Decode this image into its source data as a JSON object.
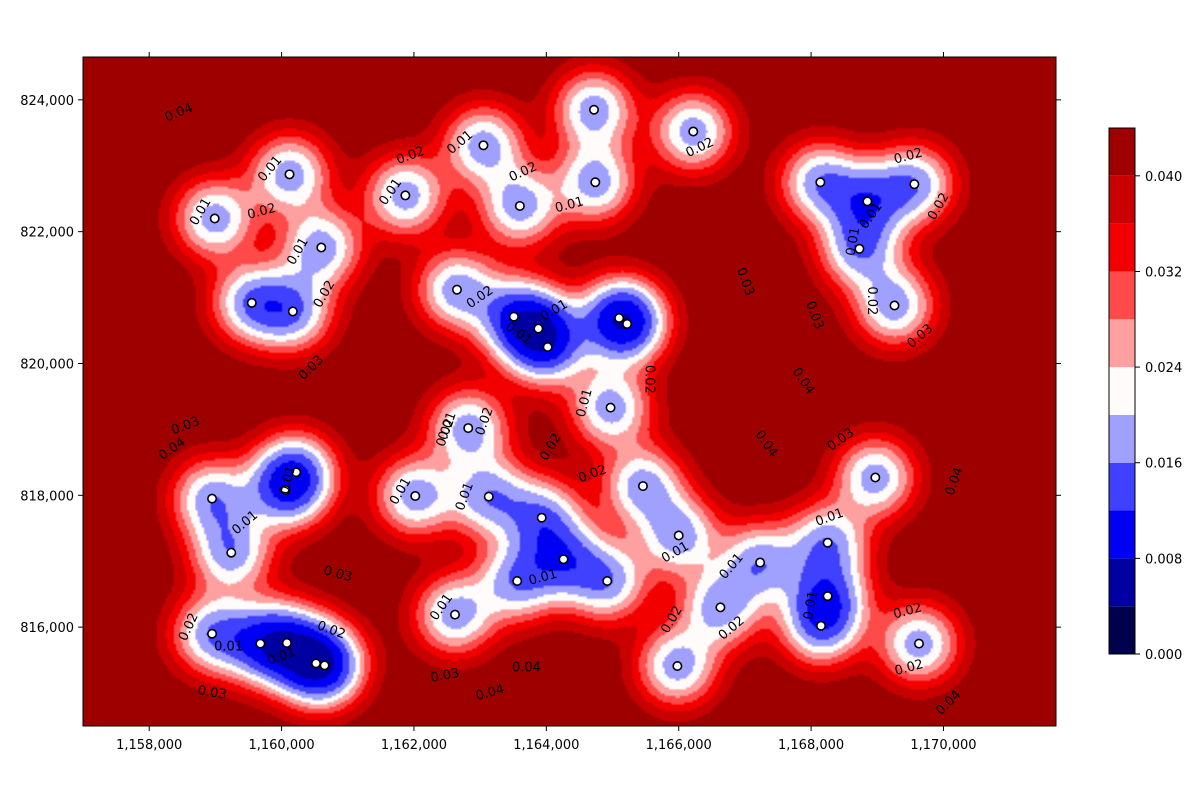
{
  "chart_data": {
    "type": "heatmap",
    "title": "",
    "xlabel": "",
    "ylabel": "",
    "xlim": [
      1157000,
      1171700
    ],
    "ylim": [
      814500,
      824650
    ],
    "x_ticks": [
      1158000,
      1160000,
      1162000,
      1164000,
      1166000,
      1168000,
      1170000
    ],
    "x_tick_labels": [
      "1,158,000",
      "1,160,000",
      "1,162,000",
      "1,164,000",
      "1,166,000",
      "1,168,000",
      "1,170,000"
    ],
    "y_ticks": [
      816000,
      818000,
      820000,
      822000,
      824000
    ],
    "y_tick_labels": [
      "816,000",
      "818,000",
      "820,000",
      "822,000",
      "824,000"
    ],
    "colorbar": {
      "levels": [
        0.0,
        0.004,
        0.008,
        0.012,
        0.016,
        0.02,
        0.024,
        0.028,
        0.032,
        0.036,
        0.04,
        0.044
      ],
      "tick_values": [
        0.0,
        0.008,
        0.016,
        0.024,
        0.032,
        0.04
      ],
      "tick_labels": [
        "0.000",
        "0.008",
        "0.016",
        "0.024",
        "0.032",
        "0.040"
      ],
      "colors": [
        "#00004c",
        "#0000a0",
        "#0000f2",
        "#4040ff",
        "#a0a0ff",
        "#fffbfb",
        "#ffa0a0",
        "#ff4a4a",
        "#f20000",
        "#c80000",
        "#9e0000"
      ],
      "colormap": "seismic"
    },
    "points": [
      [
        1158990,
        822200
      ],
      [
        1160120,
        822870
      ],
      [
        1160600,
        821760
      ],
      [
        1159550,
        820920
      ],
      [
        1160170,
        820790
      ],
      [
        1161870,
        822550
      ],
      [
        1163050,
        823310
      ],
      [
        1164720,
        823850
      ],
      [
        1166220,
        823520
      ],
      [
        1163600,
        822390
      ],
      [
        1164740,
        822750
      ],
      [
        1162650,
        821120
      ],
      [
        1163510,
        820710
      ],
      [
        1163880,
        820530
      ],
      [
        1164020,
        820250
      ],
      [
        1165100,
        820690
      ],
      [
        1165220,
        820600
      ],
      [
        1164970,
        819330
      ],
      [
        1162820,
        819020
      ],
      [
        1162020,
        817990
      ],
      [
        1163130,
        817980
      ],
      [
        1163930,
        817660
      ],
      [
        1165460,
        818140
      ],
      [
        1166000,
        817390
      ],
      [
        1164260,
        817030
      ],
      [
        1163560,
        816700
      ],
      [
        1164920,
        816700
      ],
      [
        1162620,
        816190
      ],
      [
        1165980,
        815410
      ],
      [
        1166630,
        816300
      ],
      [
        1167230,
        816980
      ],
      [
        1168250,
        817280
      ],
      [
        1168250,
        816470
      ],
      [
        1168150,
        816020
      ],
      [
        1158950,
        817950
      ],
      [
        1159240,
        817130
      ],
      [
        1160220,
        818350
      ],
      [
        1160060,
        818080
      ],
      [
        1158950,
        815900
      ],
      [
        1159680,
        815750
      ],
      [
        1160080,
        815760
      ],
      [
        1160520,
        815450
      ],
      [
        1160650,
        815420
      ],
      [
        1168140,
        822750
      ],
      [
        1168850,
        822460
      ],
      [
        1169560,
        822720
      ],
      [
        1168730,
        821740
      ],
      [
        1169260,
        820880
      ],
      [
        1168970,
        818270
      ],
      [
        1169630,
        815750
      ]
    ],
    "grid": false,
    "legend": "colorbar-right"
  },
  "contour_labels": [
    {
      "text": "0.04",
      "x": 1158450,
      "y": 823800,
      "rot": -22
    },
    {
      "text": "0.01",
      "x": 1158780,
      "y": 822300,
      "rot": -60
    },
    {
      "text": "0.01",
      "x": 1159830,
      "y": 822950,
      "rot": -50
    },
    {
      "text": "0.02",
      "x": 1159700,
      "y": 822300,
      "rot": -15
    },
    {
      "text": "0.01",
      "x": 1160250,
      "y": 821700,
      "rot": -60
    },
    {
      "text": "0.02",
      "x": 1160650,
      "y": 821050,
      "rot": -60
    },
    {
      "text": "0.03",
      "x": 1160450,
      "y": 819930,
      "rot": -45
    },
    {
      "text": "0.03",
      "x": 1158550,
      "y": 819050,
      "rot": -20
    },
    {
      "text": "0.04",
      "x": 1158350,
      "y": 818700,
      "rot": -35
    },
    {
      "text": "0.02",
      "x": 1161950,
      "y": 823150,
      "rot": -20
    },
    {
      "text": "0.01",
      "x": 1161650,
      "y": 822600,
      "rot": -55
    },
    {
      "text": "0.01",
      "x": 1162700,
      "y": 823350,
      "rot": -40
    },
    {
      "text": "0.02",
      "x": 1163650,
      "y": 822900,
      "rot": -25
    },
    {
      "text": "0.01",
      "x": 1164350,
      "y": 822400,
      "rot": -15
    },
    {
      "text": "0.02",
      "x": 1166320,
      "y": 823270,
      "rot": -25
    },
    {
      "text": "0.02",
      "x": 1163000,
      "y": 821000,
      "rot": -35
    },
    {
      "text": "0.01",
      "x": 1164120,
      "y": 820800,
      "rot": -30
    },
    {
      "text": "0.01",
      "x": 1163580,
      "y": 820450,
      "rot": 35
    },
    {
      "text": "0.02",
      "x": 1165550,
      "y": 819760,
      "rot": 90
    },
    {
      "text": "0.01",
      "x": 1164580,
      "y": 819400,
      "rot": -75
    },
    {
      "text": "0.02",
      "x": 1162480,
      "y": 818950,
      "rot": -70
    },
    {
      "text": "0.01",
      "x": 1162510,
      "y": 819050,
      "rot": -70
    },
    {
      "text": "0.02",
      "x": 1163070,
      "y": 819120,
      "rot": -70
    },
    {
      "text": "0.02",
      "x": 1164070,
      "y": 818730,
      "rot": -60
    },
    {
      "text": "0.02",
      "x": 1164700,
      "y": 818320,
      "rot": -20
    },
    {
      "text": "0.01",
      "x": 1161800,
      "y": 818060,
      "rot": -60
    },
    {
      "text": "0.01",
      "x": 1162770,
      "y": 817980,
      "rot": -70
    },
    {
      "text": "0.01",
      "x": 1163950,
      "y": 816750,
      "rot": -15
    },
    {
      "text": "0.01",
      "x": 1165950,
      "y": 817130,
      "rot": -30
    },
    {
      "text": "0.01",
      "x": 1162420,
      "y": 816300,
      "rot": -55
    },
    {
      "text": "0.03",
      "x": 1160850,
      "y": 816800,
      "rot": 15
    },
    {
      "text": "0.01",
      "x": 1160100,
      "y": 818230,
      "rot": -75
    },
    {
      "text": "0.01",
      "x": 1159450,
      "y": 817580,
      "rot": -40
    },
    {
      "text": "0.02",
      "x": 1158600,
      "y": 816000,
      "rot": -65
    },
    {
      "text": "0.01",
      "x": 1159200,
      "y": 815700,
      "rot": 0
    },
    {
      "text": "0.01",
      "x": 1160000,
      "y": 815550,
      "rot": -20
    },
    {
      "text": "0.02",
      "x": 1160750,
      "y": 815950,
      "rot": 20
    },
    {
      "text": "0.03",
      "x": 1158950,
      "y": 815000,
      "rot": 10
    },
    {
      "text": "0.03",
      "x": 1162470,
      "y": 815260,
      "rot": -10
    },
    {
      "text": "0.04",
      "x": 1163700,
      "y": 815380,
      "rot": 0
    },
    {
      "text": "0.04",
      "x": 1163150,
      "y": 815000,
      "rot": -15
    },
    {
      "text": "0.03",
      "x": 1167000,
      "y": 821240,
      "rot": 70
    },
    {
      "text": "0.04",
      "x": 1167880,
      "y": 819730,
      "rot": 55
    },
    {
      "text": "0.04",
      "x": 1167320,
      "y": 818780,
      "rot": 55
    },
    {
      "text": "0.03",
      "x": 1168450,
      "y": 818840,
      "rot": -35
    },
    {
      "text": "0.02",
      "x": 1165900,
      "y": 816110,
      "rot": -60
    },
    {
      "text": "0.01",
      "x": 1166800,
      "y": 816920,
      "rot": -50
    },
    {
      "text": "0.02",
      "x": 1166800,
      "y": 815980,
      "rot": -40
    },
    {
      "text": "0.01",
      "x": 1168280,
      "y": 817660,
      "rot": -20
    },
    {
      "text": "0.01",
      "x": 1168000,
      "y": 816330,
      "rot": -80
    },
    {
      "text": "0.04",
      "x": 1170170,
      "y": 818210,
      "rot": -70
    },
    {
      "text": "0.02",
      "x": 1169460,
      "y": 816240,
      "rot": -15
    },
    {
      "text": "0.02",
      "x": 1169480,
      "y": 815380,
      "rot": -15
    },
    {
      "text": "0.04",
      "x": 1170080,
      "y": 814850,
      "rot": -45
    },
    {
      "text": "0.02",
      "x": 1169470,
      "y": 823140,
      "rot": -15
    },
    {
      "text": "0.01",
      "x": 1168910,
      "y": 822240,
      "rot": -55
    },
    {
      "text": "0.02",
      "x": 1169930,
      "y": 822380,
      "rot": -60
    },
    {
      "text": "0.01",
      "x": 1168640,
      "y": 821850,
      "rot": -80
    },
    {
      "text": "0.02",
      "x": 1168910,
      "y": 820950,
      "rot": 90
    },
    {
      "text": "0.03",
      "x": 1169650,
      "y": 820410,
      "rot": -40
    },
    {
      "text": "0.03",
      "x": 1168050,
      "y": 820730,
      "rot": 70
    }
  ]
}
